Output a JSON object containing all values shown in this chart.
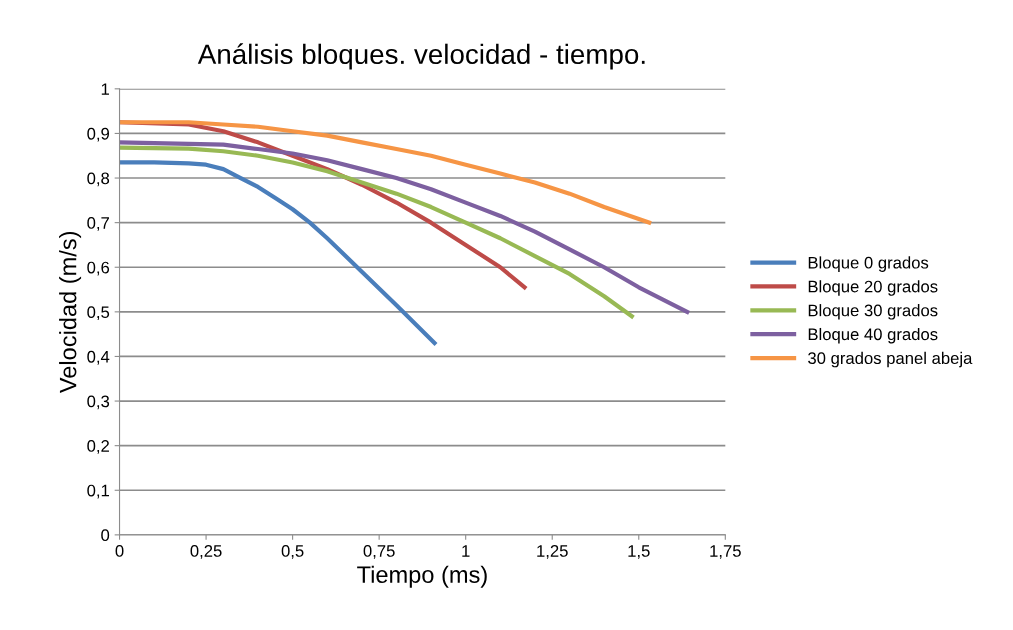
{
  "chart_data": {
    "type": "line",
    "title": "Análisis bloques. velocidad - tiempo.",
    "xlabel": "Tiempo (ms)",
    "ylabel": "Velocidad (m/s)",
    "xlim": [
      0,
      1.75
    ],
    "xticks": [
      0,
      {
        "value": 0.25,
        "label": "0,25"
      },
      {
        "value": 0.5,
        "label": "0,5"
      },
      {
        "value": 0.75,
        "label": "0,75"
      },
      1,
      {
        "value": 1.25,
        "label": "1,25"
      },
      {
        "value": 1.5,
        "label": "1,5"
      },
      {
        "value": 1.75,
        "label": "1,75"
      }
    ],
    "ylim": [
      0,
      1
    ],
    "yticks": [
      0,
      {
        "value": 0.1,
        "label": "0,1"
      },
      {
        "value": 0.2,
        "label": "0,2"
      },
      {
        "value": 0.3,
        "label": "0,3"
      },
      {
        "value": 0.4,
        "label": "0,4"
      },
      {
        "value": 0.5,
        "label": "0,5"
      },
      {
        "value": 0.6,
        "label": "0,6"
      },
      {
        "value": 0.7,
        "label": "0,7"
      },
      {
        "value": 0.8,
        "label": "0,8"
      },
      {
        "value": 0.9,
        "label": "0,9"
      },
      1
    ],
    "grid": "y",
    "legend": "right",
    "marker": "none",
    "line_style": "solid",
    "series": [
      {
        "name": "Bloque 0 grados",
        "color": "#4a7ebb",
        "x": [
          0,
          0.1,
          0.2,
          0.25,
          0.3,
          0.35,
          0.4,
          0.45,
          0.5,
          0.55,
          0.6,
          0.7,
          0.8,
          0.91
        ],
        "values": [
          0.835,
          0.835,
          0.833,
          0.83,
          0.82,
          0.8,
          0.78,
          0.755,
          0.73,
          0.7,
          0.665,
          0.59,
          0.515,
          0.43
        ]
      },
      {
        "name": "Bloque 20 grados",
        "color": "#be4b48",
        "x": [
          0,
          0.2,
          0.3,
          0.4,
          0.5,
          0.6,
          0.7,
          0.8,
          0.9,
          1.0,
          1.1,
          1.17
        ],
        "values": [
          0.925,
          0.92,
          0.905,
          0.88,
          0.85,
          0.82,
          0.785,
          0.745,
          0.7,
          0.65,
          0.6,
          0.555
        ]
      },
      {
        "name": "Bloque 30 grados",
        "color": "#98b954",
        "x": [
          0,
          0.2,
          0.3,
          0.4,
          0.5,
          0.6,
          0.7,
          0.8,
          0.9,
          1.0,
          1.1,
          1.2,
          1.3,
          1.4,
          1.48
        ],
        "values": [
          0.868,
          0.866,
          0.86,
          0.85,
          0.835,
          0.815,
          0.79,
          0.765,
          0.735,
          0.7,
          0.665,
          0.625,
          0.585,
          0.535,
          0.49
        ]
      },
      {
        "name": "Bloque 40 grados",
        "color": "#7d60a0",
        "x": [
          0,
          0.3,
          0.4,
          0.5,
          0.6,
          0.7,
          0.8,
          0.9,
          1.0,
          1.1,
          1.2,
          1.3,
          1.4,
          1.5,
          1.64
        ],
        "values": [
          0.88,
          0.875,
          0.865,
          0.855,
          0.84,
          0.82,
          0.8,
          0.775,
          0.745,
          0.715,
          0.68,
          0.64,
          0.6,
          0.555,
          0.5
        ]
      },
      {
        "name": "30 grados panel abeja",
        "color": "#f69545",
        "x": [
          0,
          0.2,
          0.3,
          0.4,
          0.5,
          0.6,
          0.7,
          0.8,
          0.9,
          1.0,
          1.1,
          1.2,
          1.3,
          1.4,
          1.53
        ],
        "values": [
          0.925,
          0.925,
          0.92,
          0.915,
          0.905,
          0.895,
          0.88,
          0.865,
          0.85,
          0.83,
          0.81,
          0.79,
          0.765,
          0.735,
          0.7
        ]
      }
    ]
  }
}
